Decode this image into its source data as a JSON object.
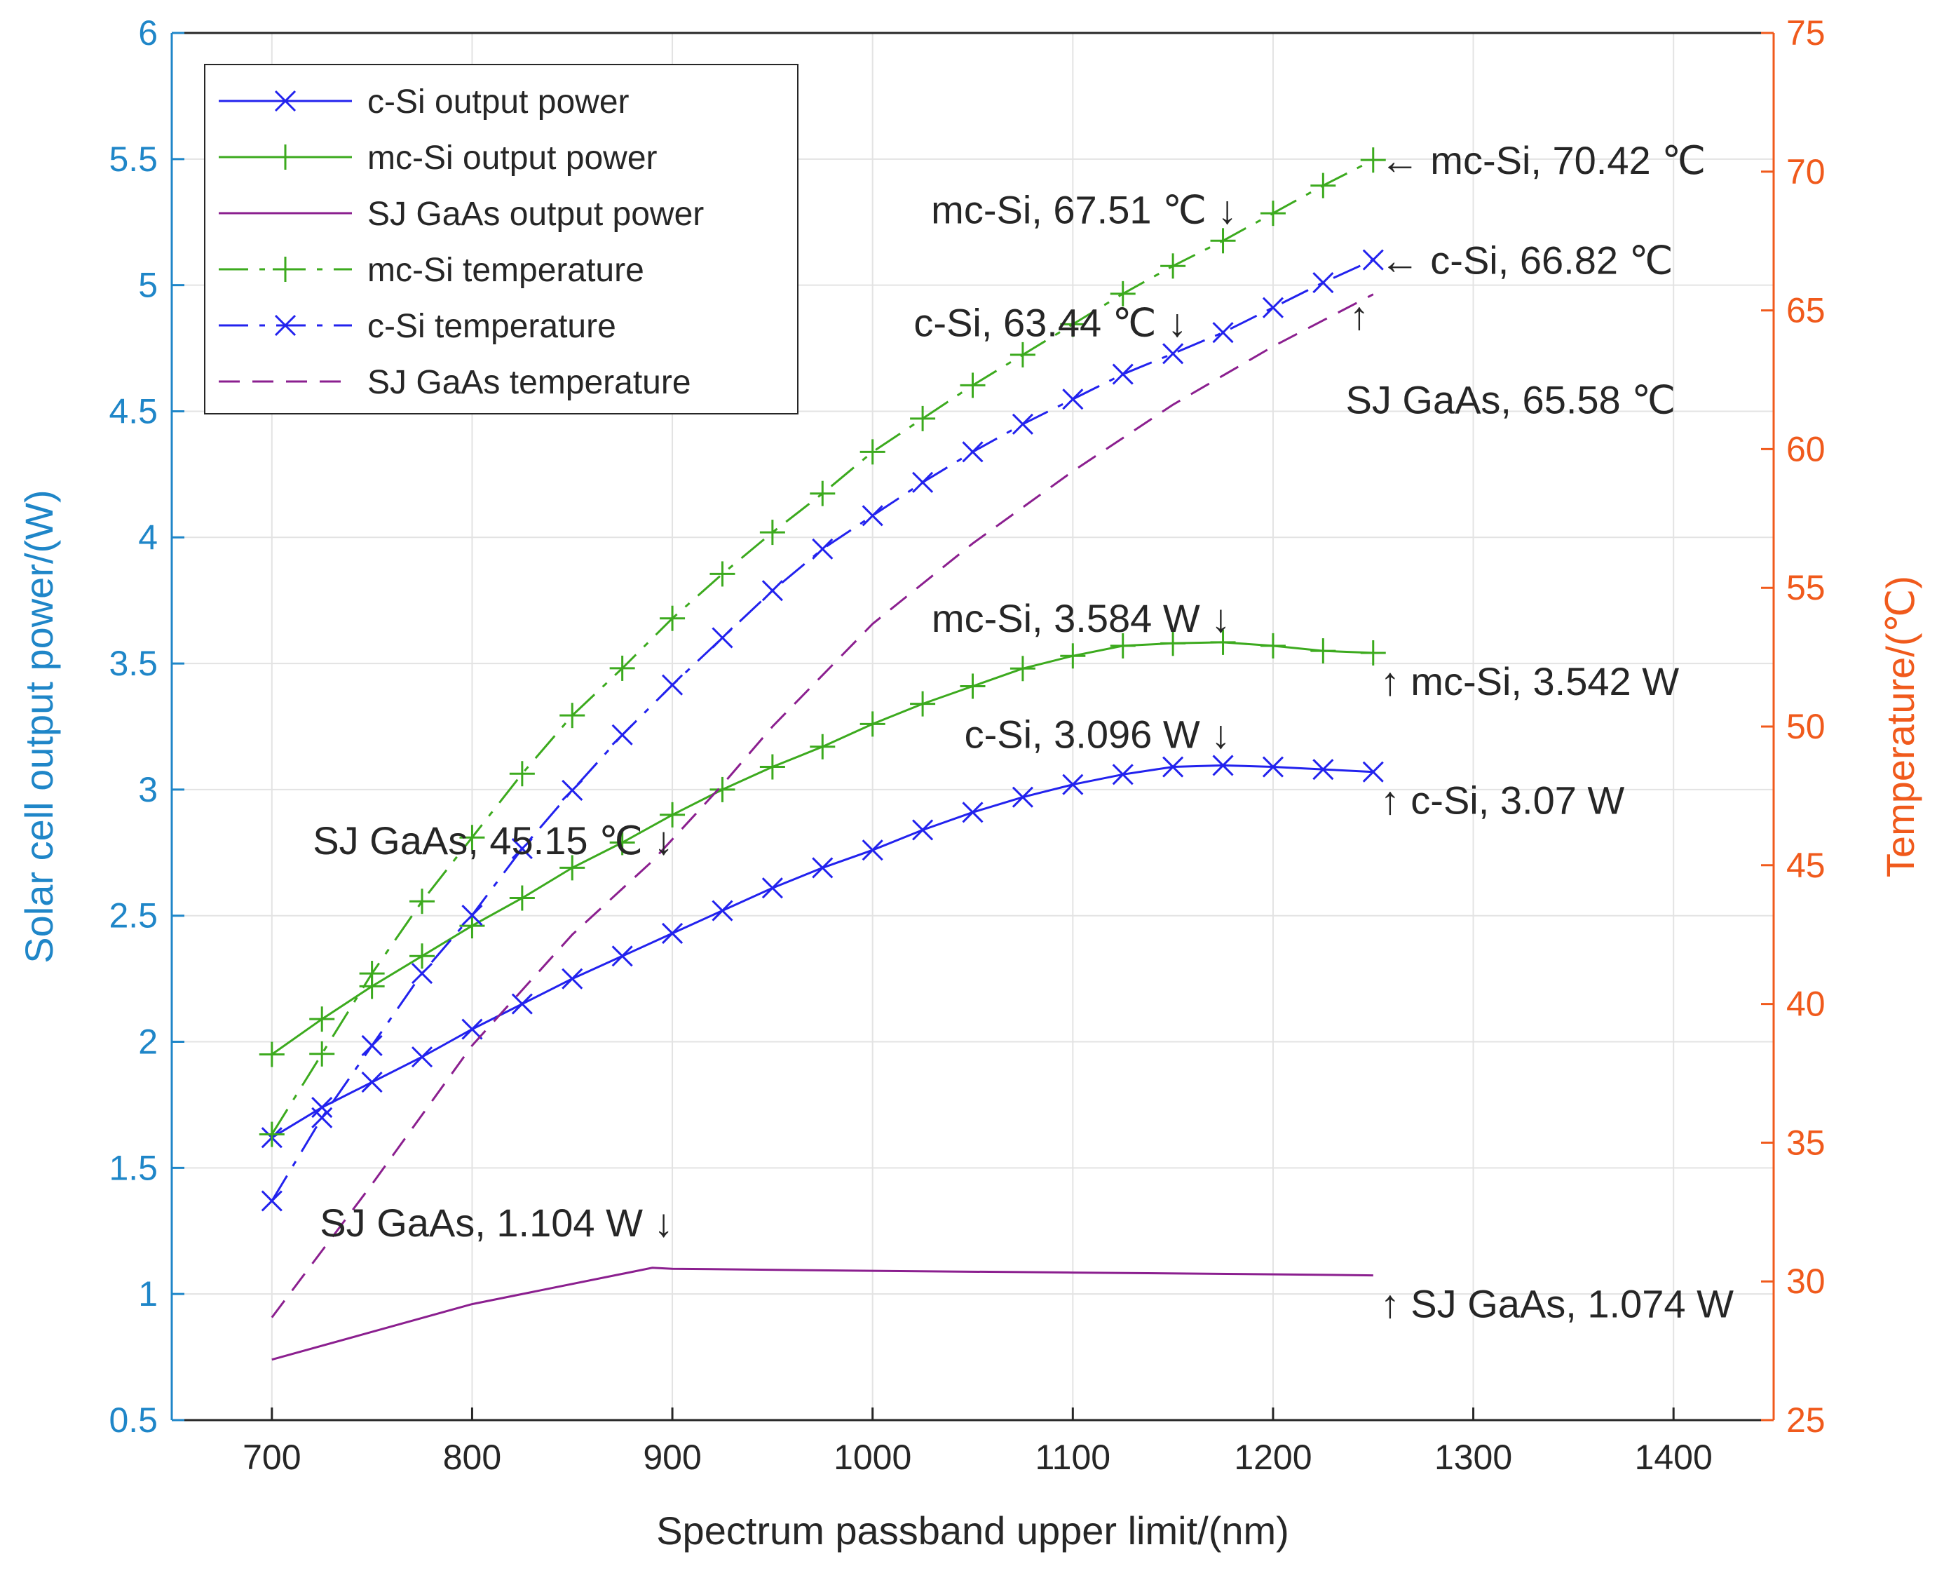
{
  "chart_data": {
    "type": "line",
    "title": "",
    "xlabel": "Spectrum passband upper limit/(nm)",
    "ylabel_left": "Solar cell output power/(W)",
    "ylabel_right": "Temperature/(℃)",
    "xlim": [
      650,
      1450
    ],
    "ylim_left": [
      0.5,
      6
    ],
    "ylim_right": [
      25,
      75
    ],
    "xticks": [
      700,
      800,
      900,
      1000,
      1100,
      1200,
      1300,
      1400
    ],
    "yticks_left": [
      0.5,
      1,
      1.5,
      2,
      2.5,
      3,
      3.5,
      4,
      4.5,
      5,
      5.5,
      6
    ],
    "yticks_right": [
      25,
      30,
      35,
      40,
      45,
      50,
      55,
      60,
      65,
      70,
      75
    ],
    "grid": true,
    "legend_position": "top-left",
    "colors": {
      "left_axis": "#1f86c8",
      "right_axis": "#f05a1c",
      "c_si": "#2222ee",
      "mc_si": "#3caa1e",
      "sj_gaas": "#8b1f8f"
    },
    "series": [
      {
        "name": "c-Si output power",
        "axis": "left",
        "color_key": "c_si",
        "style": "solid",
        "marker": "x",
        "x": [
          700,
          725,
          750,
          775,
          800,
          825,
          850,
          875,
          900,
          925,
          950,
          975,
          1000,
          1025,
          1050,
          1075,
          1100,
          1125,
          1150,
          1175,
          1200,
          1225,
          1250
        ],
        "values": [
          1.62,
          1.74,
          1.84,
          1.94,
          2.05,
          2.15,
          2.25,
          2.34,
          2.43,
          2.52,
          2.61,
          2.69,
          2.76,
          2.84,
          2.91,
          2.97,
          3.02,
          3.06,
          3.09,
          3.096,
          3.09,
          3.08,
          3.07
        ]
      },
      {
        "name": "mc-Si output power",
        "axis": "left",
        "color_key": "mc_si",
        "style": "solid",
        "marker": "+",
        "x": [
          700,
          725,
          750,
          775,
          800,
          825,
          850,
          875,
          900,
          925,
          950,
          975,
          1000,
          1025,
          1050,
          1075,
          1100,
          1125,
          1150,
          1175,
          1200,
          1225,
          1250
        ],
        "values": [
          1.95,
          2.09,
          2.22,
          2.34,
          2.46,
          2.57,
          2.69,
          2.79,
          2.9,
          3.0,
          3.09,
          3.17,
          3.26,
          3.34,
          3.41,
          3.48,
          3.53,
          3.57,
          3.58,
          3.584,
          3.57,
          3.55,
          3.542
        ]
      },
      {
        "name": "SJ GaAs output power",
        "axis": "left",
        "color_key": "sj_gaas",
        "style": "solid",
        "marker": "none",
        "x": [
          700,
          800,
          890,
          900,
          1000,
          1100,
          1200,
          1250
        ],
        "values": [
          0.74,
          0.96,
          1.104,
          1.1,
          1.092,
          1.085,
          1.078,
          1.074
        ]
      },
      {
        "name": "mc-Si temperature",
        "axis": "right",
        "color_key": "mc_si",
        "style": "dashdot",
        "marker": "+",
        "x": [
          700,
          725,
          750,
          775,
          800,
          825,
          850,
          875,
          900,
          925,
          950,
          975,
          1000,
          1025,
          1050,
          1075,
          1100,
          1125,
          1150,
          1175,
          1200,
          1225,
          1250
        ],
        "values": [
          35.3,
          38.2,
          41.1,
          43.7,
          46.0,
          48.3,
          50.4,
          52.1,
          53.9,
          55.5,
          57.0,
          58.4,
          59.9,
          61.1,
          62.3,
          63.4,
          64.5,
          65.6,
          66.6,
          67.51,
          68.5,
          69.5,
          70.42
        ]
      },
      {
        "name": "c-Si temperature",
        "axis": "right",
        "color_key": "c_si",
        "style": "dashdot",
        "marker": "x",
        "x": [
          700,
          725,
          750,
          775,
          800,
          825,
          850,
          875,
          900,
          925,
          950,
          975,
          1000,
          1025,
          1050,
          1075,
          1100,
          1125,
          1150,
          1175,
          1200,
          1225,
          1250
        ],
        "values": [
          32.9,
          35.9,
          38.5,
          41.1,
          43.2,
          45.6,
          47.7,
          49.7,
          51.5,
          53.2,
          54.9,
          56.4,
          57.6,
          58.8,
          59.9,
          60.9,
          61.8,
          62.7,
          63.44,
          64.2,
          65.1,
          66.0,
          66.82
        ]
      },
      {
        "name": "SJ GaAs temperature",
        "axis": "right",
        "color_key": "sj_gaas",
        "style": "dashed",
        "marker": "none",
        "x": [
          700,
          750,
          800,
          850,
          890,
          925,
          950,
          1000,
          1050,
          1100,
          1150,
          1200,
          1250
        ],
        "values": [
          28.7,
          33.5,
          38.5,
          42.5,
          45.15,
          47.9,
          50.0,
          53.7,
          56.6,
          59.2,
          61.6,
          63.7,
          65.58
        ]
      }
    ],
    "annotations": [
      {
        "text": "← mc-Si, 70.42 ℃",
        "x": 1250,
        "y": 70.42,
        "axis": "right",
        "anchor": "start"
      },
      {
        "text": "← c-Si, 66.82 ℃",
        "x": 1250,
        "y": 66.82,
        "axis": "right",
        "anchor": "start"
      },
      {
        "text": "↑",
        "x": 1250,
        "y": 65.58,
        "axis": "right",
        "anchor": "middle"
      },
      {
        "text": "SJ GaAs, 65.58 ℃",
        "x": 1245,
        "y": 65.58,
        "axis": "right",
        "anchor": "start"
      },
      {
        "text": "mc-Si, 67.51 ℃ ↓",
        "x": 1175,
        "y": 67.51,
        "axis": "right",
        "anchor": "end"
      },
      {
        "text": "c-Si, 63.44 ℃ ↓",
        "x": 1150,
        "y": 63.44,
        "axis": "right",
        "anchor": "end"
      },
      {
        "text": "mc-Si, 3.584 W ↓",
        "x": 1170,
        "y": 3.584,
        "axis": "left",
        "anchor": "end"
      },
      {
        "text": "↑ mc-Si, 3.542 W",
        "x": 1250,
        "y": 3.542,
        "axis": "left",
        "anchor": "start"
      },
      {
        "text": "c-Si, 3.096 W ↓",
        "x": 1170,
        "y": 3.096,
        "axis": "left",
        "anchor": "end"
      },
      {
        "text": "↑ c-Si, 3.07 W",
        "x": 1250,
        "y": 3.07,
        "axis": "left",
        "anchor": "start"
      },
      {
        "text": "SJ GaAs, 45.15 ℃ ↓",
        "x": 890,
        "y": 45.15,
        "axis": "right",
        "anchor": "end"
      },
      {
        "text": "SJ GaAs, 1.104 W ↓",
        "x": 890,
        "y": 1.104,
        "axis": "left",
        "anchor": "end"
      },
      {
        "text": "↑ SJ GaAs, 1.074 W",
        "x": 1250,
        "y": 1.074,
        "axis": "left",
        "anchor": "start"
      }
    ]
  }
}
